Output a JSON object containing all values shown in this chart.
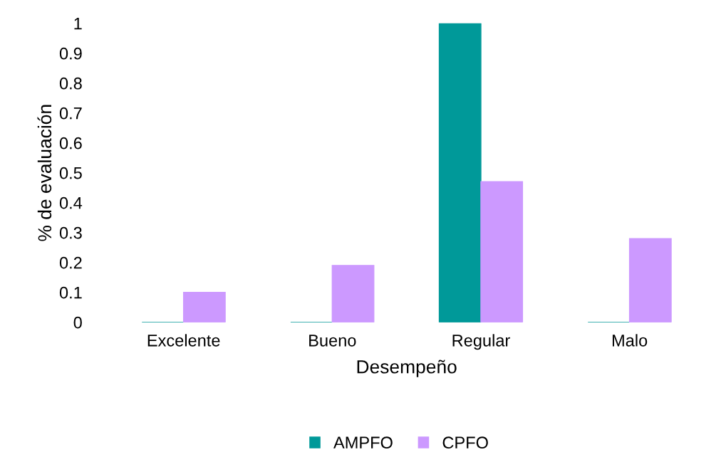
{
  "chart_data": {
    "type": "bar",
    "xlabel": "Desempeño",
    "ylabel": "% de evaluación",
    "categories": [
      "Excelente",
      "Bueno",
      "Regular",
      "Malo"
    ],
    "series": [
      {
        "name": "AMPFO",
        "color": "#009999",
        "values": [
          0,
          0,
          1,
          0
        ]
      },
      {
        "name": "CPFO",
        "color": "#cc99ff",
        "values": [
          0.1,
          0.19,
          0.47,
          0.28
        ]
      }
    ],
    "ylim": [
      0,
      1
    ],
    "yticks": [
      0,
      0.1,
      0.2,
      0.3,
      0.4,
      0.5,
      0.6,
      0.7,
      0.8,
      0.9,
      1
    ],
    "grid": false,
    "legend": "bottom"
  }
}
